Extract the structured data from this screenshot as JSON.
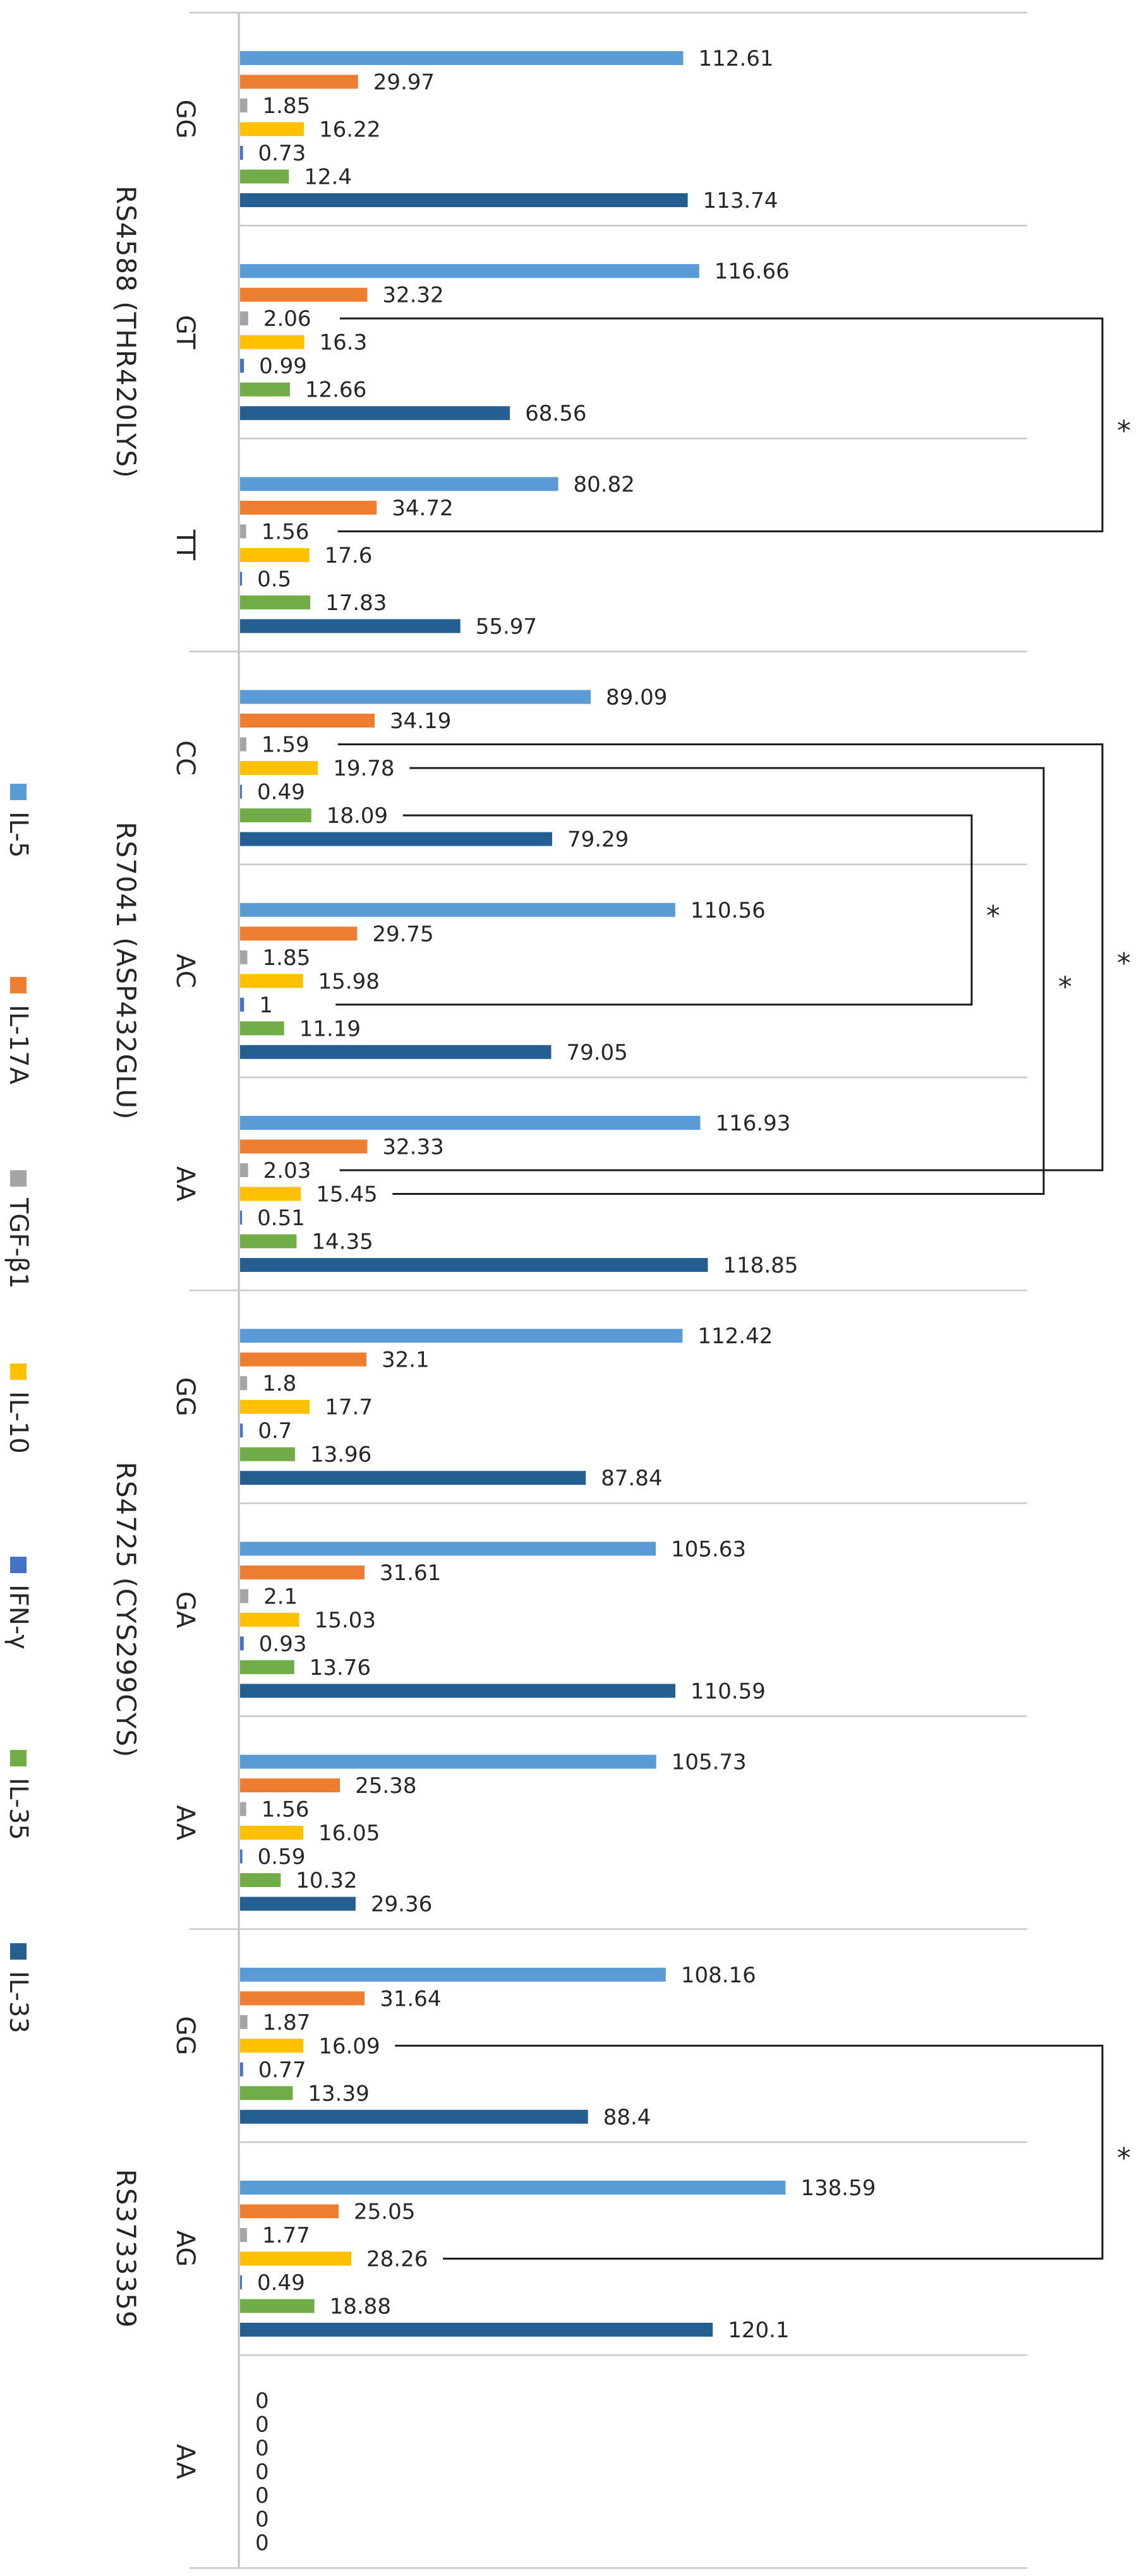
{
  "chart_data": {
    "type": "bar",
    "orientation": "horizontal",
    "series": [
      {
        "name": "IL-5",
        "color": "#5B9BD5"
      },
      {
        "name": "IL-17A",
        "color": "#ED7D31"
      },
      {
        "name": "TGF-β1",
        "color": "#A5A5A5"
      },
      {
        "name": "IL-10",
        "color": "#FFC000"
      },
      {
        "name": "IFN-γ",
        "color": "#4472C4"
      },
      {
        "name": "IL-35",
        "color": "#70AD47"
      },
      {
        "name": "IL-33",
        "color": "#255E91"
      }
    ],
    "groups": [
      {
        "name": "RS4588 (THR420LYS)",
        "genotypes": [
          {
            "label": "GG",
            "values": [
              112.61,
              29.97,
              1.85,
              16.22,
              0.73,
              12.4,
              113.74
            ]
          },
          {
            "label": "GT",
            "values": [
              116.66,
              32.32,
              2.06,
              16.3,
              0.99,
              12.66,
              68.56
            ]
          },
          {
            "label": "TT",
            "values": [
              80.82,
              34.72,
              1.56,
              17.6,
              0.5,
              17.83,
              55.97
            ]
          }
        ]
      },
      {
        "name": "RS7041 (ASP432GLU)",
        "genotypes": [
          {
            "label": "CC",
            "values": [
              89.09,
              34.19,
              1.59,
              19.78,
              0.49,
              18.09,
              79.29
            ]
          },
          {
            "label": "AC",
            "values": [
              110.56,
              29.75,
              1.85,
              15.98,
              1,
              11.19,
              79.05
            ]
          },
          {
            "label": "AA",
            "values": [
              116.93,
              32.33,
              2.03,
              15.45,
              0.51,
              14.35,
              118.85
            ]
          }
        ]
      },
      {
        "name": "RS4725 (CYS299CYS)",
        "genotypes": [
          {
            "label": "GG",
            "values": [
              112.42,
              32.1,
              1.8,
              17.7,
              0.7,
              13.96,
              87.84
            ]
          },
          {
            "label": "GA",
            "values": [
              105.63,
              31.61,
              2.1,
              15.03,
              0.93,
              13.76,
              110.59
            ]
          },
          {
            "label": "AA",
            "values": [
              105.73,
              25.38,
              1.56,
              16.05,
              0.59,
              10.32,
              29.36
            ]
          }
        ]
      },
      {
        "name": "RS3733359",
        "genotypes": [
          {
            "label": "GG",
            "values": [
              108.16,
              31.64,
              1.87,
              16.09,
              0.77,
              13.39,
              88.4
            ]
          },
          {
            "label": "AG",
            "values": [
              138.59,
              25.05,
              1.77,
              28.26,
              0.49,
              18.88,
              120.1
            ]
          },
          {
            "label": "AA",
            "values": [
              0,
              0,
              0,
              0,
              0,
              0,
              0
            ]
          }
        ]
      }
    ],
    "significance_brackets": [
      {
        "group": 0,
        "from": [
          1,
          2
        ],
        "to": [
          2,
          2
        ],
        "marker": "*"
      },
      {
        "group": 1,
        "from": [
          0,
          5
        ],
        "to": [
          1,
          4
        ],
        "marker": "*"
      },
      {
        "group": 1,
        "from": [
          0,
          3
        ],
        "to": [
          2,
          3
        ],
        "marker": "*"
      },
      {
        "group": 1,
        "from": [
          0,
          2
        ],
        "to": [
          2,
          2
        ],
        "marker": "*"
      },
      {
        "group": 3,
        "from": [
          0,
          3
        ],
        "to": [
          1,
          3
        ],
        "marker": "*"
      }
    ],
    "legend_position": "left",
    "xlim": [
      0,
      140
    ]
  }
}
